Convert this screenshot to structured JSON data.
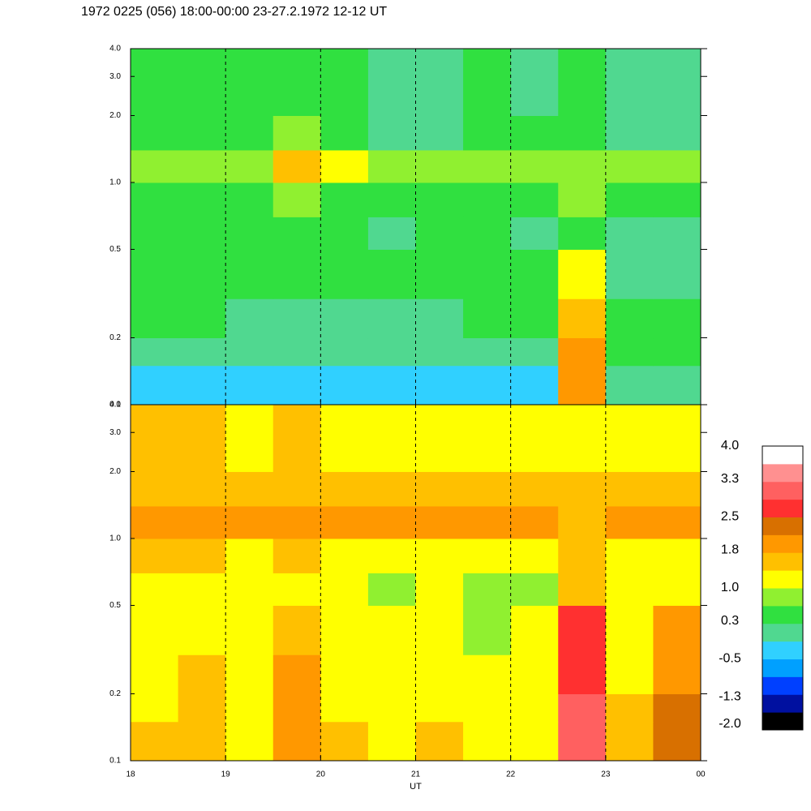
{
  "chart_data": [
    {
      "type": "heatmap",
      "title": "1972 0225 (056) 18:00-00:00 23-27.2.1972  12-12 UT",
      "xbins": [
        18,
        18.5,
        19,
        19.5,
        20,
        20.5,
        21,
        21.5,
        22,
        22.5,
        23,
        23.5,
        24
      ],
      "ybins": [
        0.1,
        0.15,
        0.2,
        0.3,
        0.5,
        0.7,
        1.0,
        1.4,
        2.0,
        4.0
      ],
      "values": [
        [
          -0.3,
          -0.2,
          -0.3,
          -0.3,
          -0.4,
          -0.3,
          -0.3,
          -0.2,
          -0.3,
          1.8,
          0.1,
          0.2
        ],
        [
          0,
          0.1,
          0,
          -0.1,
          0,
          0,
          -0.1,
          0.1,
          0,
          1.8,
          0.3,
          0.5
        ],
        [
          0.3,
          0.4,
          0.2,
          0.2,
          0.2,
          0.1,
          0.2,
          0.3,
          0.3,
          1.6,
          0.3,
          0.4
        ],
        [
          0.5,
          0.4,
          0.3,
          0.6,
          0.4,
          0.3,
          0.4,
          0.3,
          0.3,
          1.2,
          0.2,
          0.2
        ],
        [
          0.4,
          0.3,
          0.3,
          0.6,
          0.4,
          0.2,
          0.3,
          0.3,
          0.2,
          0.6,
          0.2,
          0.1
        ],
        [
          0.5,
          0.4,
          0.5,
          0.8,
          0.6,
          0.4,
          0.4,
          0.4,
          0.4,
          0.7,
          0.4,
          0.4
        ],
        [
          0.9,
          0.8,
          0.8,
          1.6,
          1.0,
          0.8,
          0.8,
          0.8,
          0.9,
          0.8,
          0.8,
          0.8
        ],
        [
          0.4,
          0.3,
          0.3,
          0.7,
          0.4,
          0.2,
          0.2,
          0.3,
          0.3,
          0.4,
          0.2,
          0.2
        ],
        [
          0.5,
          0.4,
          0.3,
          0.5,
          0.3,
          0.1,
          0.2,
          0.3,
          0.2,
          0.3,
          0.1,
          0.2
        ]
      ],
      "xlim": [
        18,
        24
      ],
      "ylim": [
        0.1,
        4.0
      ],
      "log_y": true,
      "xticks": [
        18,
        19,
        20,
        21,
        22,
        23,
        {
          "value": 24,
          "label": "00"
        }
      ],
      "yticks": [
        0.1,
        0.2,
        0.5,
        {
          "value": 1,
          "label": "1.0"
        },
        {
          "value": 2,
          "label": "2.0"
        },
        {
          "value": 3,
          "label": "3.0"
        },
        {
          "value": 4,
          "label": "4.0"
        }
      ],
      "grid": true
    },
    {
      "type": "heatmap",
      "xlabel": "UT",
      "xbins": [
        18,
        18.5,
        19,
        19.5,
        20,
        20.5,
        21,
        21.5,
        22,
        22.5,
        23,
        23.5,
        24
      ],
      "ybins": [
        0.1,
        0.15,
        0.2,
        0.3,
        0.5,
        0.7,
        1.0,
        1.4,
        2.0,
        4.0
      ],
      "values": [
        [
          1.4,
          1.6,
          1.2,
          2.0,
          1.4,
          1.3,
          1.4,
          1.3,
          1.2,
          2.9,
          1.4,
          2.2
        ],
        [
          1.3,
          1.7,
          1.2,
          2.0,
          1.3,
          1.2,
          1.3,
          1.2,
          1.2,
          2.9,
          1.6,
          2.4
        ],
        [
          1.3,
          1.4,
          1.1,
          1.8,
          1.2,
          1.1,
          1.1,
          1.0,
          1.1,
          2.8,
          1.3,
          2.0
        ],
        [
          1.2,
          1.3,
          1.0,
          1.4,
          1.1,
          1.0,
          1.0,
          0.9,
          1.0,
          2.6,
          1.1,
          1.8
        ],
        [
          1.2,
          1.1,
          1.0,
          1.2,
          1.0,
          0.9,
          1.0,
          0.9,
          0.9,
          1.6,
          1.0,
          1.3
        ],
        [
          1.7,
          1.4,
          1.3,
          1.4,
          1.3,
          1.2,
          1.2,
          1.2,
          1.2,
          1.4,
          1.2,
          1.3
        ],
        [
          2.0,
          1.9,
          2.0,
          2.0,
          1.9,
          1.9,
          1.9,
          1.8,
          1.9,
          1.7,
          1.8,
          1.9
        ],
        [
          1.6,
          1.5,
          1.5,
          1.6,
          1.5,
          1.5,
          1.4,
          1.4,
          1.5,
          1.4,
          1.4,
          1.5
        ],
        [
          1.4,
          1.4,
          1.3,
          1.4,
          1.3,
          1.3,
          1.3,
          1.3,
          1.3,
          1.2,
          1.3,
          1.3
        ]
      ],
      "xlim": [
        18,
        24
      ],
      "ylim": [
        0.1,
        4.0
      ],
      "log_y": true,
      "xticks": [
        18,
        19,
        20,
        21,
        22,
        23,
        {
          "value": 24,
          "label": "00"
        }
      ],
      "yticks": [
        0.1,
        0.2,
        0.5,
        {
          "value": 1,
          "label": "1.0"
        },
        {
          "value": 2,
          "label": "2.0"
        },
        {
          "value": 3,
          "label": "3.0"
        },
        {
          "value": 4,
          "label": "4.0"
        }
      ],
      "grid": true
    }
  ],
  "colorbar": {
    "clim": [
      -2.0,
      4.0
    ],
    "colors": [
      "#000000",
      "#0010a0",
      "#0040ff",
      "#00a0ff",
      "#30d0ff",
      "#50d890",
      "#30e040",
      "#90f030",
      "#ffff00",
      "#ffc000",
      "#ff9800",
      "#d87000",
      "#ff3030",
      "#ff6060",
      "#ff9090",
      "#ffffff"
    ],
    "ticks": [
      {
        "value": 4,
        "label": "4.0"
      },
      3.3,
      2.5,
      1.8,
      {
        "value": 1,
        "label": "1.0"
      },
      0.3,
      -0.5,
      -1.3,
      {
        "value": -2,
        "label": "-2.0"
      }
    ]
  }
}
